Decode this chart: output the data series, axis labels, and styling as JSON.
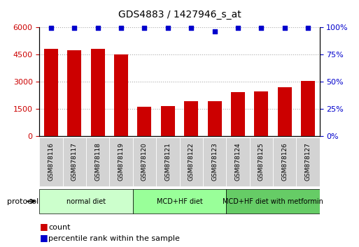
{
  "title": "GDS4883 / 1427946_s_at",
  "samples": [
    "GSM878116",
    "GSM878117",
    "GSM878118",
    "GSM878119",
    "GSM878120",
    "GSM878121",
    "GSM878122",
    "GSM878123",
    "GSM878124",
    "GSM878125",
    "GSM878126",
    "GSM878127"
  ],
  "counts": [
    4820,
    4740,
    4820,
    4500,
    1620,
    1640,
    1920,
    1900,
    2400,
    2450,
    2700,
    3050
  ],
  "percentile_ranks": [
    99,
    99,
    99,
    99,
    99,
    99,
    99,
    96,
    99,
    99,
    99,
    99
  ],
  "bar_color": "#cc0000",
  "dot_color": "#0000cc",
  "ylim_left": [
    0,
    6000
  ],
  "ylim_right": [
    0,
    100
  ],
  "yticks_left": [
    0,
    1500,
    3000,
    4500,
    6000
  ],
  "yticks_right": [
    0,
    25,
    50,
    75,
    100
  ],
  "ytick_labels_left": [
    "0",
    "1500",
    "3000",
    "4500",
    "6000"
  ],
  "ytick_labels_right": [
    "0%",
    "25%",
    "50%",
    "75%",
    "100%"
  ],
  "groups": [
    {
      "label": "normal diet",
      "start": 0,
      "end": 4,
      "color": "#ccffcc"
    },
    {
      "label": "MCD+HF diet",
      "start": 4,
      "end": 8,
      "color": "#99ff99"
    },
    {
      "label": "MCD+HF diet with metformin",
      "start": 8,
      "end": 12,
      "color": "#66cc66"
    }
  ],
  "protocol_label": "protocol",
  "legend_count_label": "count",
  "legend_pct_label": "percentile rank within the sample",
  "background_color": "#ffffff",
  "grid_color": "#aaaaaa",
  "left_tick_color": "#cc0000",
  "right_tick_color": "#0000cc"
}
